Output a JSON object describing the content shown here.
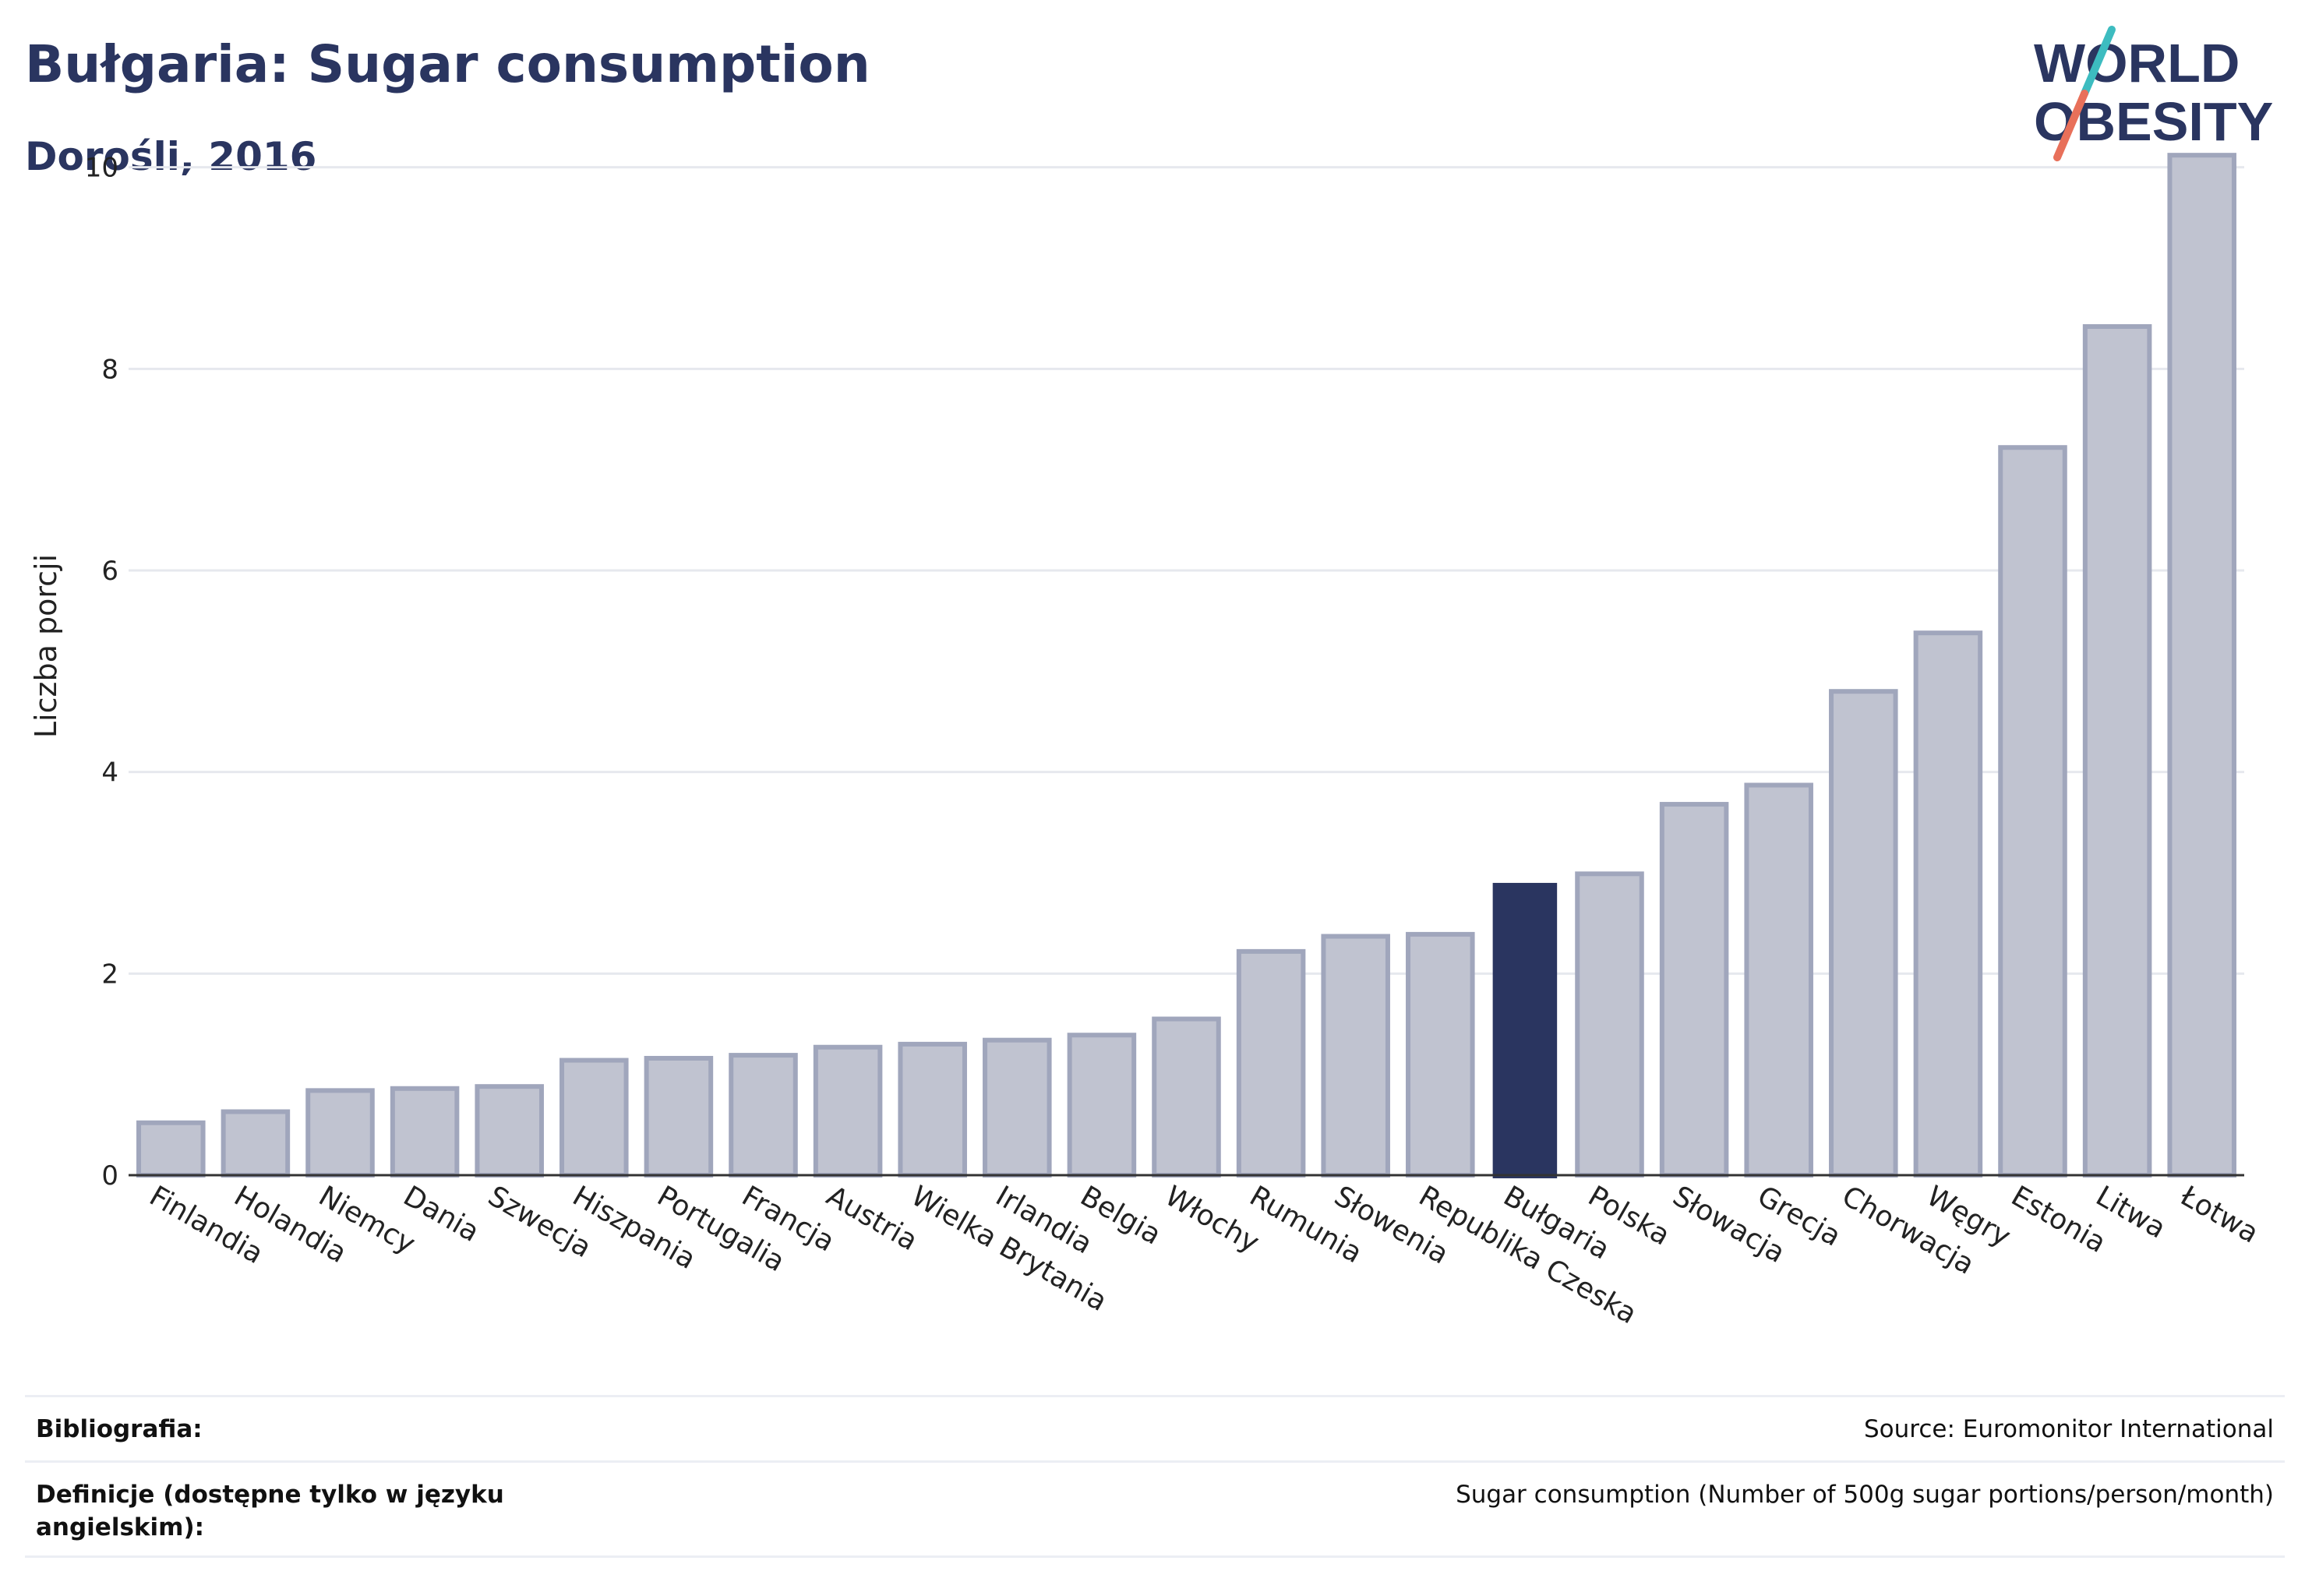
{
  "header": {
    "title": "Bułgaria: Sugar consumption",
    "subtitle": "Dorośli, 2016"
  },
  "logo": {
    "line1": "WORLD",
    "line2": "OBESITY",
    "colors": {
      "text": "#2a3560",
      "accent_teal": "#3dbcc0",
      "accent_red": "#e8705a"
    }
  },
  "chart_data": {
    "type": "bar",
    "ylabel": "Liczba porcji",
    "ylim": [
      0,
      10.5
    ],
    "yticks": [
      0,
      2,
      4,
      6,
      8,
      10
    ],
    "grid": true,
    "highlight": "Bułgaria",
    "colors": {
      "bar": "#c0c3d0",
      "bar_edge": "#a0a6bc",
      "highlight": "#2a3560",
      "grid": "#e6e8ee",
      "axis": "#333333"
    },
    "categories": [
      "Finlandia",
      "Holandia",
      "Niemcy",
      "Dania",
      "Szwecja",
      "Hiszpania",
      "Portugalia",
      "Francja",
      "Austria",
      "Wielka Brytania",
      "Irlandia",
      "Belgia",
      "Włochy",
      "Rumunia",
      "Słowenia",
      "Republika Czeska",
      "Bułgaria",
      "Polska",
      "Słowacja",
      "Grecja",
      "Chorwacja",
      "Węgry",
      "Estonia",
      "Litwa",
      "Łotwa"
    ],
    "values": [
      0.52,
      0.63,
      0.84,
      0.86,
      0.88,
      1.14,
      1.16,
      1.19,
      1.27,
      1.3,
      1.34,
      1.39,
      1.55,
      2.22,
      2.37,
      2.39,
      2.9,
      2.99,
      3.68,
      3.87,
      4.8,
      5.38,
      7.22,
      8.42,
      10.12
    ]
  },
  "footer": {
    "bibliography_label": "Bibliografia:",
    "bibliography_value": "Source: Euromonitor International",
    "definitions_label_line1": "Definicje (dostępne tylko w języku",
    "definitions_label_line2": "angielskim):",
    "definitions_value": "Sugar consumption (Number of 500g sugar portions/person/month)"
  }
}
